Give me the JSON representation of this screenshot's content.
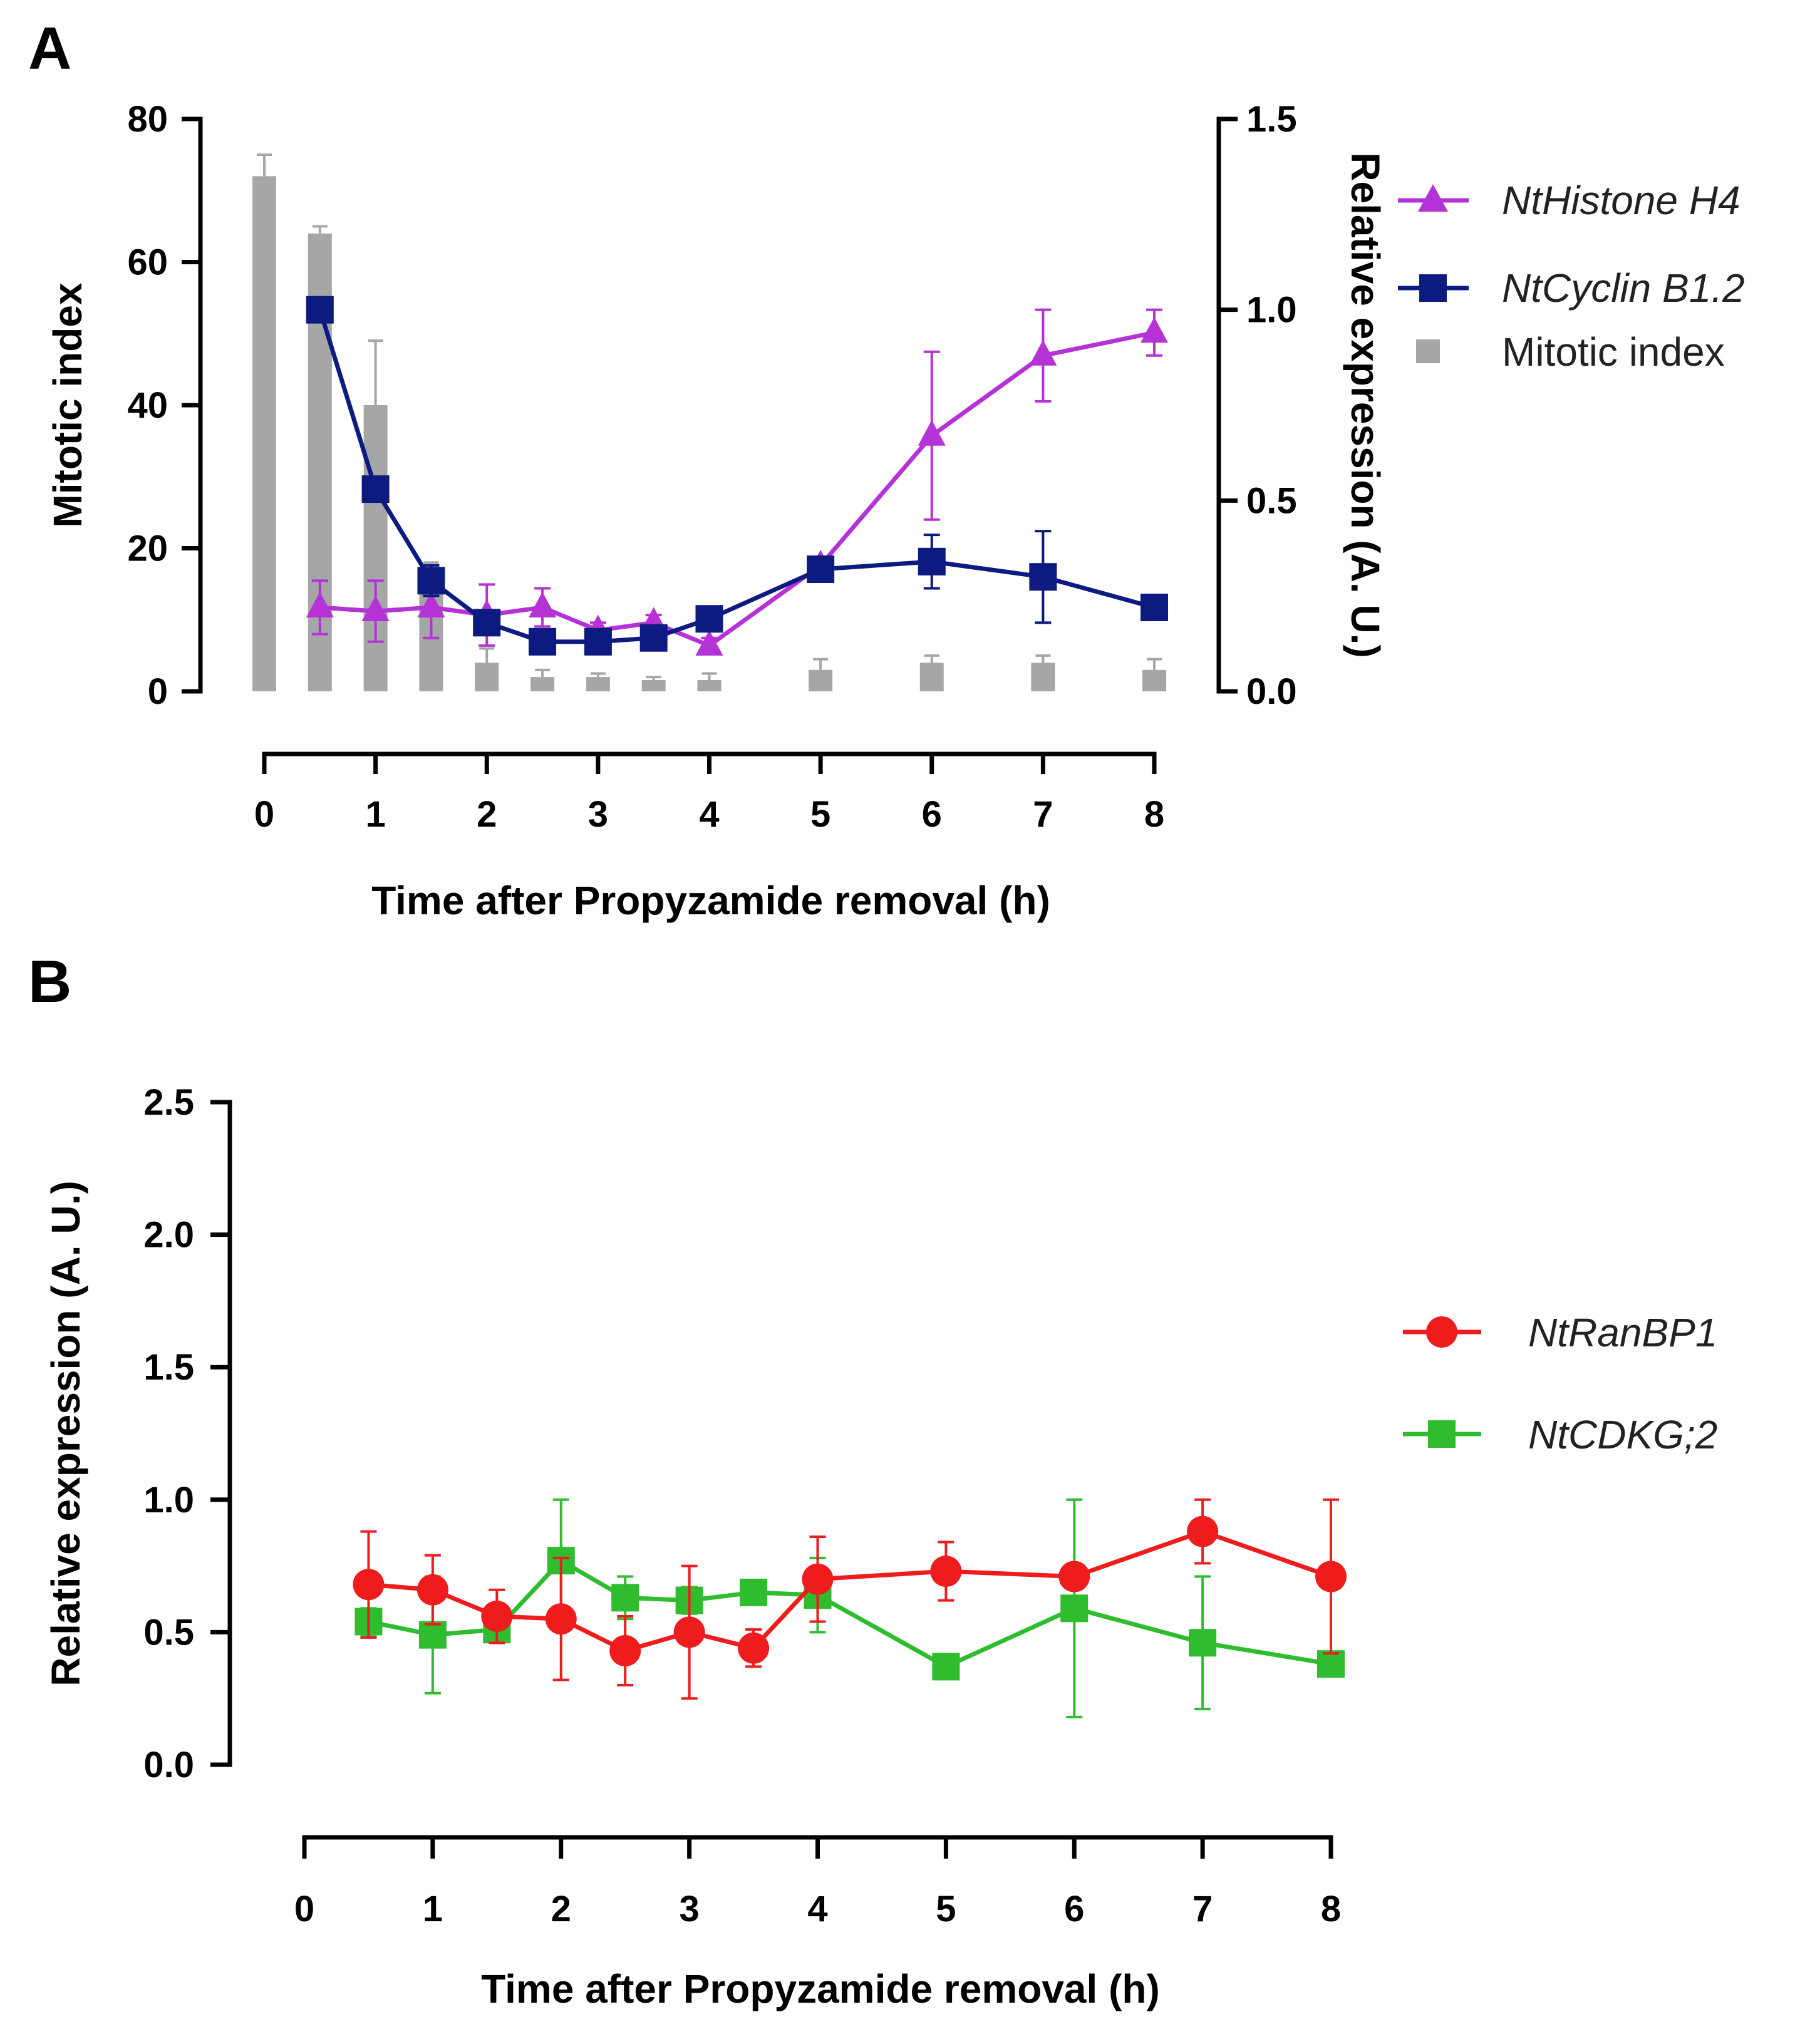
{
  "colors": {
    "histone": "#b533d6",
    "cyclin": "#0d1a80",
    "mitotic": "#a6a6a6",
    "ranbp1": "#ee1c1c",
    "cdkg": "#2fbd2f"
  },
  "chart_data": [
    {
      "panel": "A",
      "type": "line",
      "title": "",
      "xlabel": "Time after Propyzamide removal (h)",
      "ylabel": "Mitotic index",
      "y2label": "Relative expression (A. U.)",
      "xlim": [
        0,
        8
      ],
      "ylim": [
        0,
        80
      ],
      "y2lim": [
        0,
        1.5
      ],
      "xticks": [
        0,
        1,
        2,
        3,
        4,
        5,
        6,
        7,
        8
      ],
      "xtick_labels": [
        "0",
        "1",
        "2",
        "3",
        "4",
        "5",
        "6",
        "7",
        "8"
      ],
      "yticks": [
        0,
        20,
        40,
        60,
        80
      ],
      "ytick_labels": [
        "0",
        "20",
        "40",
        "60",
        "80"
      ],
      "y2ticks": [
        0,
        0.5,
        1.0,
        1.5
      ],
      "y2tick_labels": [
        "0.0",
        "0.5",
        "1.0",
        "1.5"
      ],
      "legend_position": "right",
      "grid": false,
      "series": [
        {
          "name": "NtHistone H4",
          "italic": true,
          "kind": "line",
          "marker": "triangle",
          "axis": "right",
          "color_key": "histone",
          "x": [
            0.5,
            1,
            1.5,
            2,
            2.5,
            3,
            3.5,
            4,
            5,
            6,
            7,
            8
          ],
          "y": [
            0.22,
            0.21,
            0.22,
            0.2,
            0.22,
            0.16,
            0.18,
            0.12,
            0.33,
            0.67,
            0.88,
            0.94
          ],
          "err": [
            0.07,
            0.08,
            0.08,
            0.08,
            0.05,
            0.02,
            0.02,
            0.02,
            0.02,
            0.22,
            0.12,
            0.06
          ]
        },
        {
          "name": "NtCyclin B1.2",
          "italic": true,
          "kind": "line",
          "marker": "square",
          "axis": "right",
          "color_key": "cyclin",
          "x": [
            0.5,
            1,
            1.5,
            2,
            2.5,
            3,
            3.5,
            4,
            5,
            6,
            7,
            8
          ],
          "y": [
            1.0,
            0.53,
            0.29,
            0.18,
            0.13,
            0.13,
            0.14,
            0.19,
            0.32,
            0.34,
            0.3,
            0.22
          ],
          "err": [
            0,
            0,
            0.04,
            0.02,
            0.01,
            0.01,
            0.01,
            0.01,
            0.02,
            0.07,
            0.12,
            0
          ]
        },
        {
          "name": "Mitotic index",
          "italic": false,
          "kind": "bar",
          "marker": "square",
          "axis": "left",
          "color_key": "mitotic",
          "x": [
            0,
            0.5,
            1,
            1.5,
            2,
            2.5,
            3,
            3.5,
            4,
            5,
            6,
            7,
            8
          ],
          "y": [
            72,
            64,
            40,
            17,
            4,
            2,
            2,
            1.5,
            1.5,
            3,
            4,
            4,
            3
          ],
          "err": [
            3,
            1,
            9,
            1,
            2,
            1,
            0.5,
            0.5,
            1,
            1.5,
            1,
            1,
            1.5
          ]
        }
      ]
    },
    {
      "panel": "B",
      "type": "line",
      "title": "",
      "xlabel": "Time after Propyzamide removal (h)",
      "ylabel": "Relative expression (A. U.)",
      "xlim": [
        0,
        8
      ],
      "ylim": [
        0,
        2.5
      ],
      "xticks": [
        0,
        1,
        2,
        3,
        4,
        5,
        6,
        7,
        8
      ],
      "xtick_labels": [
        "0",
        "1",
        "2",
        "3",
        "4",
        "5",
        "6",
        "7",
        "8"
      ],
      "yticks": [
        0,
        0.5,
        1.0,
        1.5,
        2.0,
        2.5
      ],
      "ytick_labels": [
        "0.0",
        "0.5",
        "1.0",
        "1.5",
        "2.0",
        "2.5"
      ],
      "legend_position": "right",
      "grid": false,
      "series": [
        {
          "name": "NtRanBP1",
          "italic": true,
          "kind": "line",
          "marker": "circle",
          "color_key": "ranbp1",
          "x": [
            0.5,
            1,
            1.5,
            2,
            2.5,
            3,
            3.5,
            4,
            5,
            6,
            7,
            8
          ],
          "y": [
            0.68,
            0.66,
            0.56,
            0.55,
            0.43,
            0.5,
            0.44,
            0.7,
            0.73,
            0.71,
            0.88,
            0.71
          ],
          "err": [
            0.2,
            0.13,
            0.1,
            0.23,
            0.13,
            0.25,
            0.07,
            0.16,
            0.11,
            0,
            0.12,
            0.29
          ]
        },
        {
          "name": "NtCDKG;2",
          "italic": true,
          "kind": "line",
          "marker": "square",
          "color_key": "cdkg",
          "x": [
            0.5,
            1,
            1.5,
            2,
            2.5,
            3,
            3.5,
            4,
            5,
            6,
            7,
            8
          ],
          "y": [
            0.54,
            0.49,
            0.51,
            0.77,
            0.63,
            0.62,
            0.65,
            0.64,
            0.37,
            0.59,
            0.46,
            0.38
          ],
          "err": [
            0.05,
            0.22,
            0.05,
            0.23,
            0.08,
            0.05,
            0.02,
            0.14,
            0.02,
            0.41,
            0.25,
            0.02
          ]
        }
      ]
    }
  ]
}
